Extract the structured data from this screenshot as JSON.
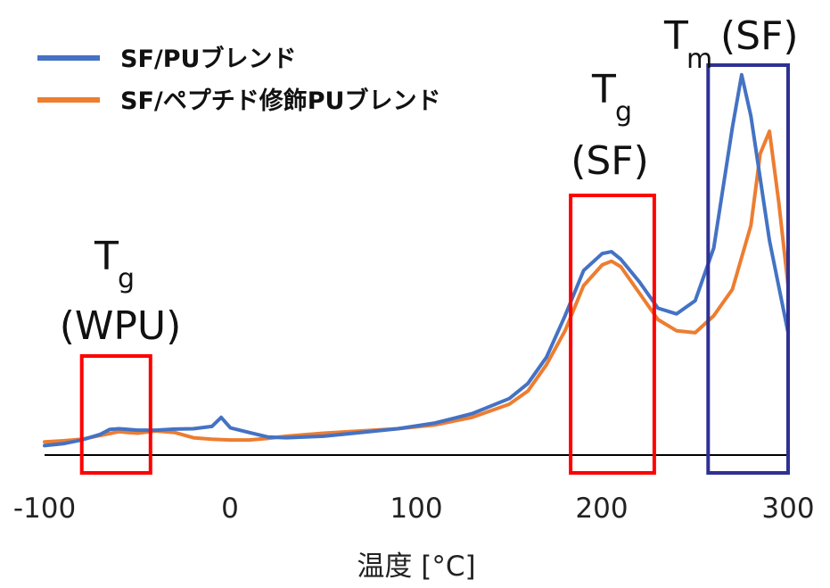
{
  "chart_data": {
    "type": "line",
    "xlabel": "温度 [°C]",
    "xlim": [
      -100,
      300
    ],
    "ylim": [
      0,
      100
    ],
    "xticks": [
      "-100",
      "0",
      "100",
      "200",
      "300"
    ],
    "xtick_values": [
      -100,
      0,
      100,
      200,
      300
    ],
    "grid": false,
    "legend_position": "top-left",
    "series": [
      {
        "name": "SF/PUブレンド",
        "color": "#4472C4",
        "x": [
          -100,
          -90,
          -80,
          -70,
          -65,
          -60,
          -55,
          -50,
          -40,
          -30,
          -20,
          -10,
          -5,
          0,
          10,
          20,
          30,
          50,
          70,
          90,
          110,
          130,
          150,
          160,
          170,
          180,
          190,
          200,
          205,
          210,
          220,
          230,
          240,
          250,
          260,
          270,
          275,
          280,
          290,
          300
        ],
        "y": [
          2.5,
          3.0,
          4.0,
          5.5,
          6.8,
          7.0,
          6.8,
          6.6,
          6.6,
          6.9,
          7.0,
          7.6,
          10.0,
          7.2,
          6.0,
          4.8,
          4.6,
          5.0,
          6.0,
          7.0,
          8.5,
          11.0,
          15.0,
          19.0,
          26.0,
          37.0,
          49.0,
          53.5,
          54.0,
          52.0,
          46.0,
          39.0,
          37.5,
          41.0,
          55.0,
          87.0,
          101.0,
          90.0,
          57.0,
          32.5
        ]
      },
      {
        "name": "SF/ペプチド修飾PUブレンド",
        "color": "#ED7D31",
        "x": [
          -100,
          -90,
          -80,
          -70,
          -60,
          -55,
          -50,
          -40,
          -30,
          -20,
          -10,
          0,
          10,
          20,
          30,
          50,
          70,
          90,
          110,
          130,
          150,
          160,
          170,
          180,
          190,
          200,
          205,
          210,
          220,
          230,
          240,
          250,
          260,
          270,
          280,
          285,
          290,
          295,
          300
        ],
        "y": [
          3.5,
          3.8,
          4.2,
          5.2,
          6.2,
          6.0,
          5.8,
          6.4,
          6.0,
          4.6,
          4.2,
          4.0,
          4.0,
          4.4,
          5.0,
          5.8,
          6.4,
          7.0,
          8.0,
          10.0,
          13.5,
          17.0,
          24.0,
          33.0,
          45.0,
          50.5,
          51.5,
          50.0,
          43.0,
          36.0,
          33.0,
          32.5,
          37.0,
          44.0,
          61.0,
          80.0,
          86.0,
          67.0,
          45.0
        ]
      }
    ],
    "annotations": [
      {
        "main": "T",
        "sub": "g",
        "line2": "(WPU)",
        "box_color": "#FF0000",
        "x_range": [
          -80,
          -43
        ]
      },
      {
        "main": "T",
        "sub": "g",
        "line2": "(SF)",
        "box_color": "#FF0000",
        "x_range": [
          183,
          228
        ]
      },
      {
        "main": "T",
        "sub": "m",
        "suffix": " (SF)",
        "box_color": "#2E3192",
        "x_range": [
          257,
          300
        ]
      }
    ]
  }
}
